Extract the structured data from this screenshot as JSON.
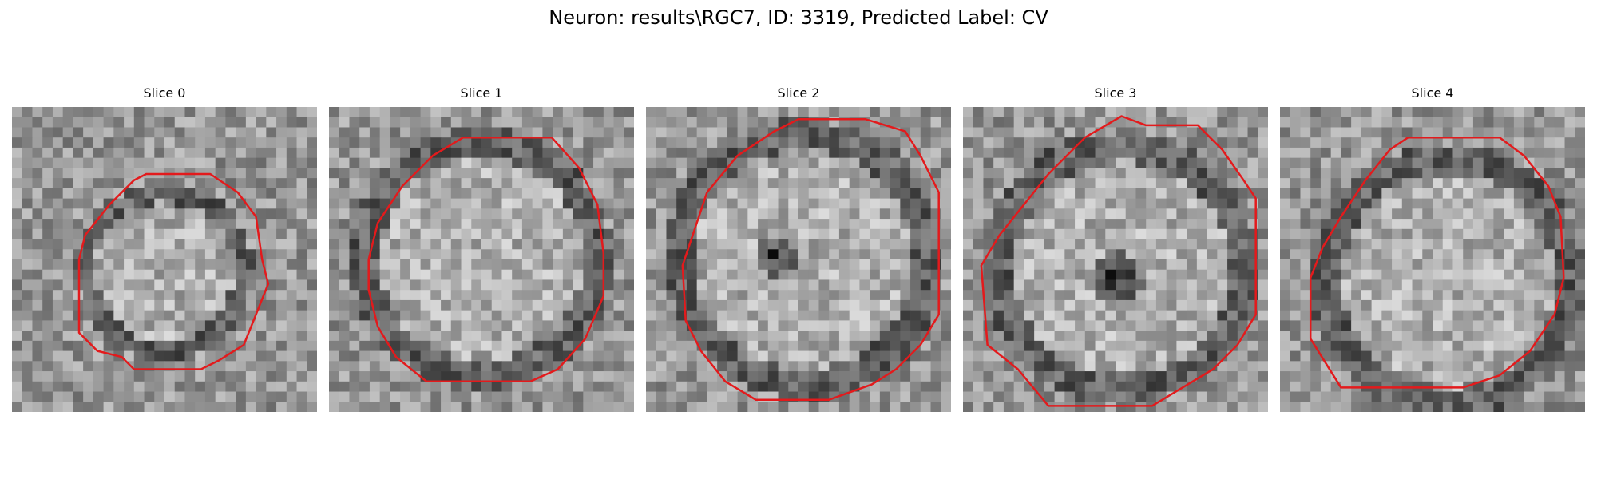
{
  "figure": {
    "title": "Neuron: results\\RGC7, ID: 3319, Predicted Label: CV"
  },
  "panels": [
    {
      "label": "Slice 0"
    },
    {
      "label": "Slice 1"
    },
    {
      "label": "Slice 2"
    },
    {
      "label": "Slice 3"
    },
    {
      "label": "Slice 4"
    }
  ],
  "colors": {
    "contour": "#e31a1c",
    "colormap": "gray"
  }
}
